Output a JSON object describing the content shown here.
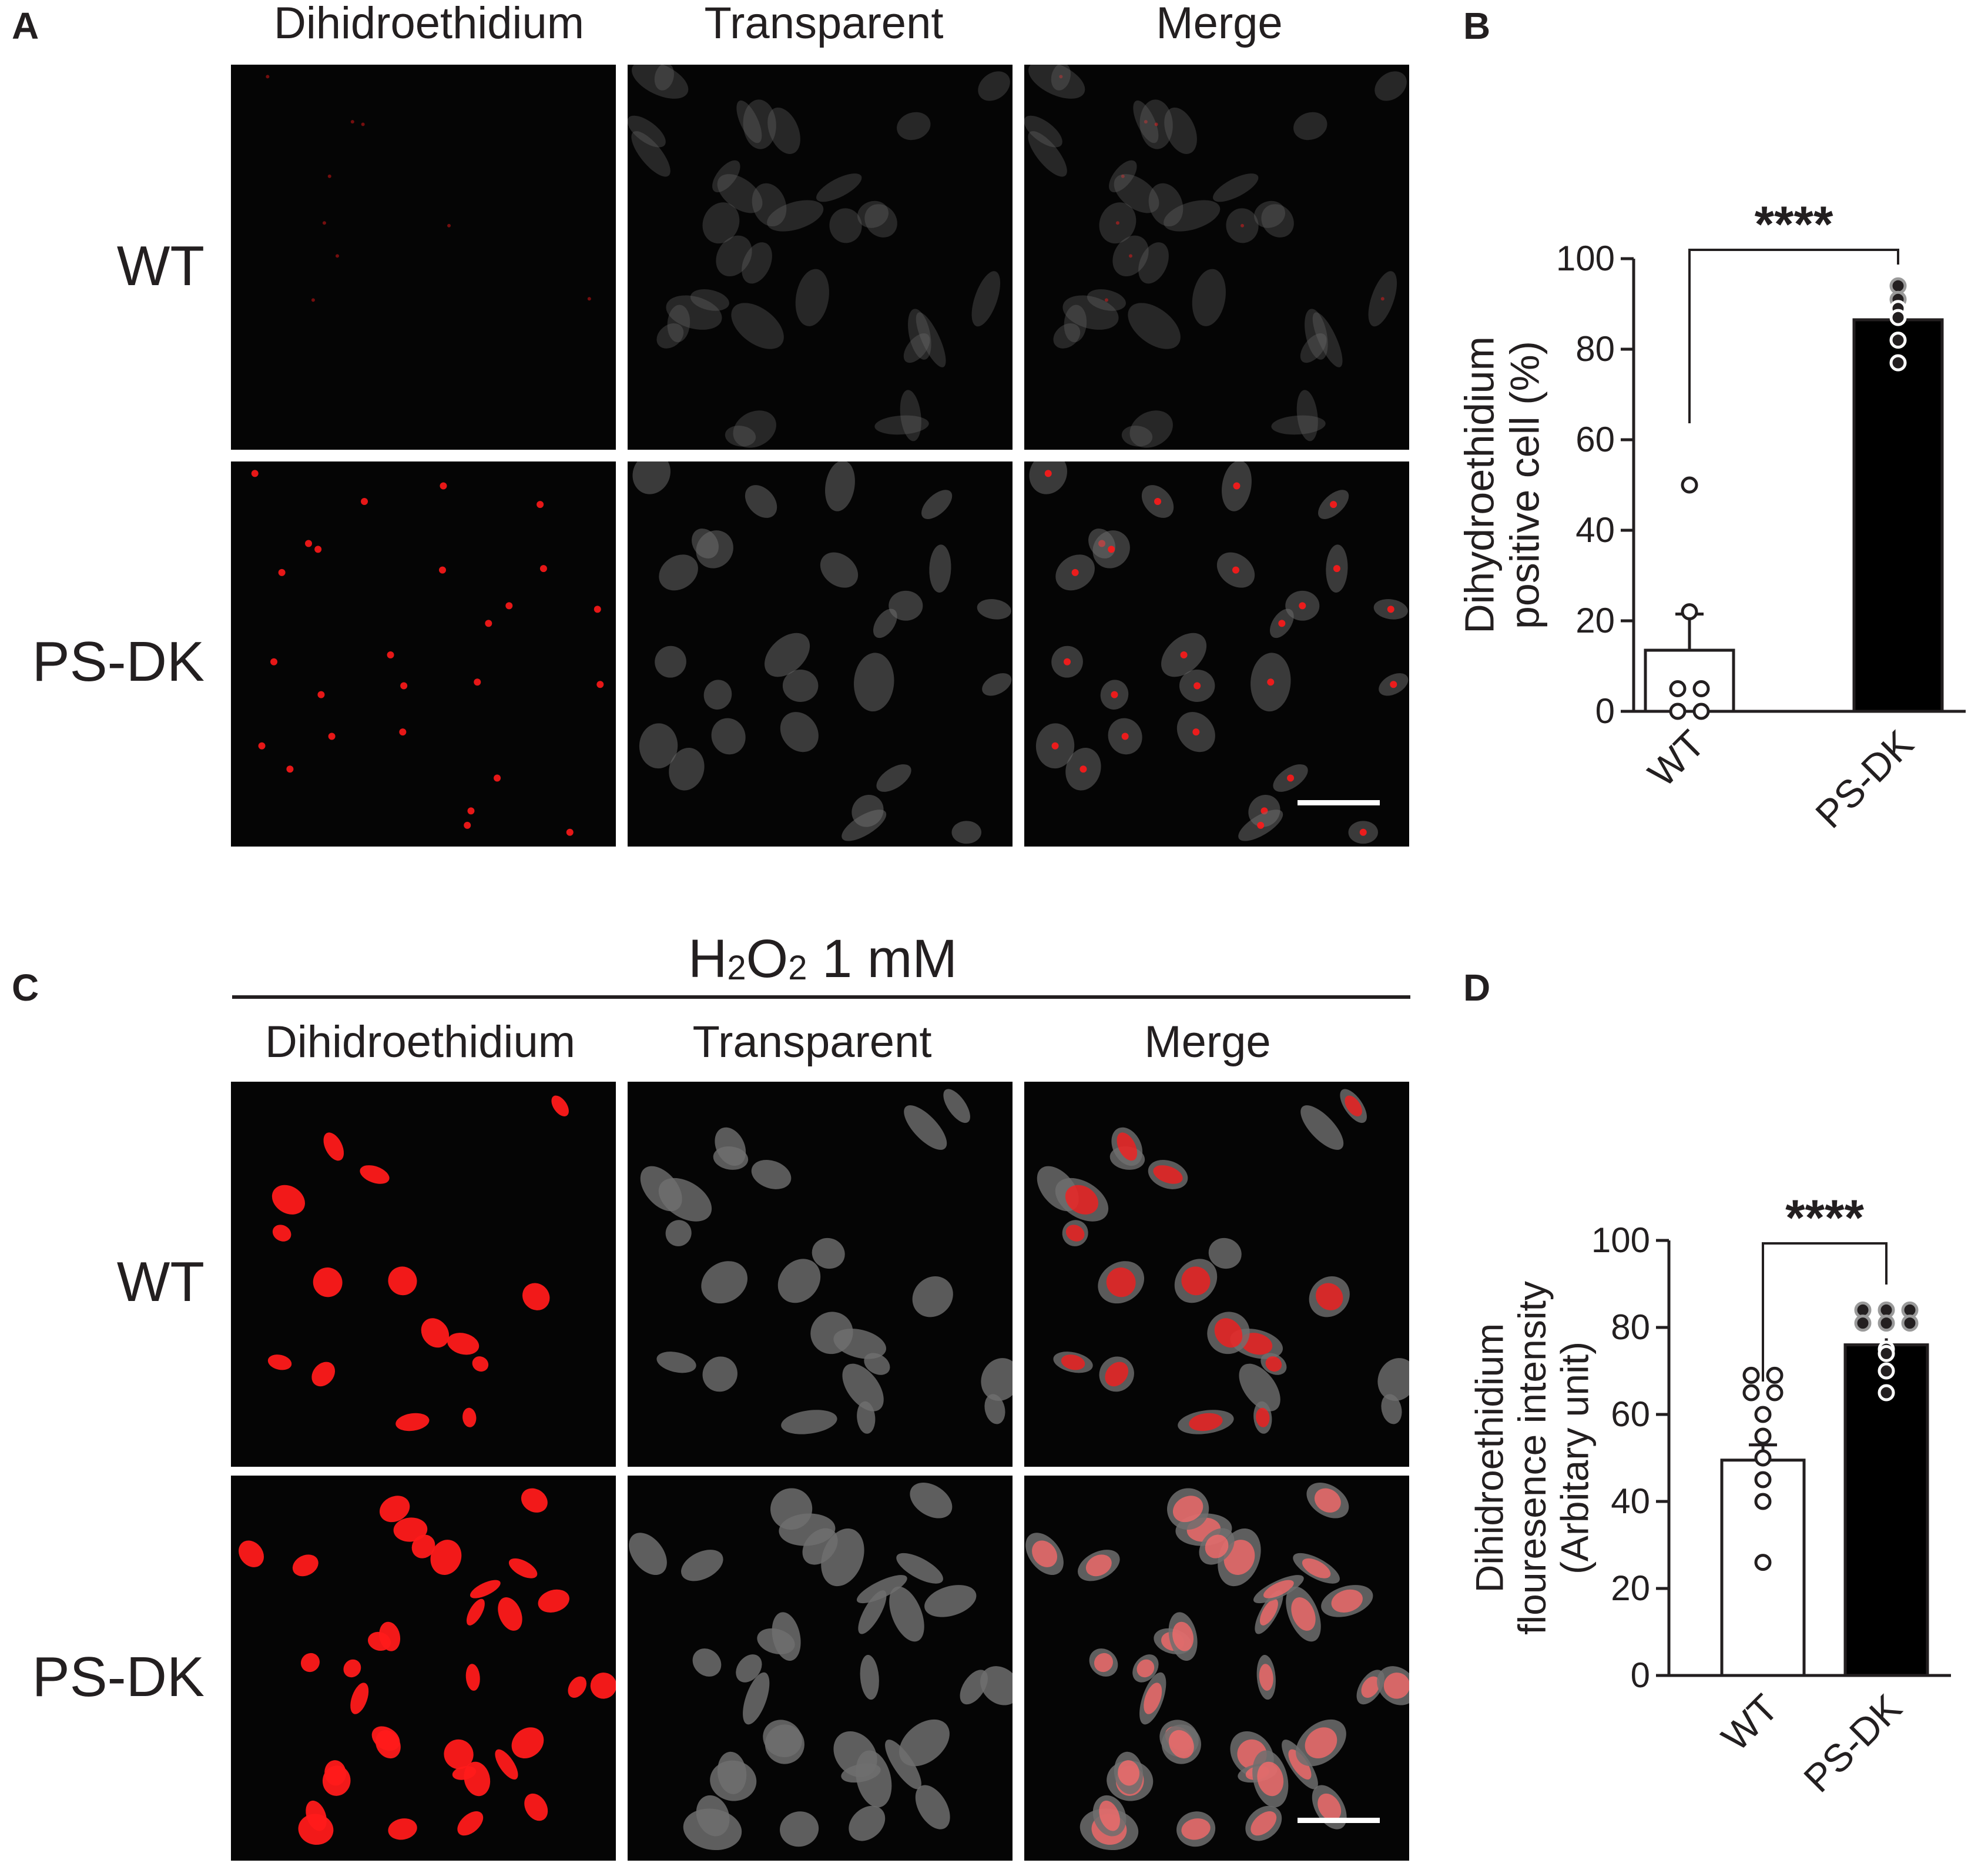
{
  "panels": {
    "A": {
      "letter": "A",
      "columns": [
        "Dihidroethidium",
        "Transparent",
        "Merge"
      ],
      "rows": [
        "WT",
        "PS-DK"
      ]
    },
    "B": {
      "letter": "B"
    },
    "C": {
      "letter": "C",
      "condition": "H2O2 1 mM",
      "condition_parts": {
        "h": "H",
        "sub1": "2",
        "o": "O",
        "sub2": "2",
        "rest": " 1 mM"
      },
      "columns": [
        "Dihidroethidium",
        "Transparent",
        "Merge"
      ],
      "rows": [
        "WT",
        "PS-DK"
      ]
    },
    "D": {
      "letter": "D"
    }
  },
  "chart_data": [
    {
      "panel": "B",
      "type": "bar",
      "categories": [
        "WT",
        "PS-DK"
      ],
      "values": [
        13.5,
        86.5
      ],
      "sem": [
        8,
        2.5
      ],
      "bar_colors": [
        "#ffffff",
        "#000000"
      ],
      "points": [
        [
          50,
          22,
          5,
          5,
          0,
          0
        ],
        [
          94,
          91,
          89,
          87,
          82,
          77
        ]
      ],
      "ylabel_lines": [
        "Dihydroethidium",
        "positive cell (%)"
      ],
      "ylim": [
        0,
        100
      ],
      "yticks": [
        0,
        20,
        40,
        60,
        80,
        100
      ],
      "significance": "****"
    },
    {
      "panel": "D",
      "type": "bar",
      "categories": [
        "WT",
        "PS-DK"
      ],
      "values": [
        49.5,
        76
      ],
      "sem": [
        3.5,
        1.5
      ],
      "bar_colors": [
        "#ffffff",
        "#000000"
      ],
      "points": [
        [
          69,
          69,
          65,
          65,
          60,
          55,
          50,
          45,
          40,
          26
        ],
        [
          84,
          84,
          84,
          81,
          81,
          81,
          75,
          74,
          70,
          65
        ]
      ],
      "ylabel_lines": [
        "Dihidroethidium",
        "flouresence intensity",
        "(Arbitary unit)"
      ],
      "ylim": [
        0,
        100
      ],
      "yticks": [
        0,
        20,
        40,
        60,
        80,
        100
      ],
      "significance": "****"
    }
  ],
  "colors": {
    "text": "#231f20",
    "micrograph_bg": "#050505",
    "dhe_red": "#ff1a1a",
    "merge_red": "#ff6b6b",
    "cell_gray": "#6f6f6f"
  }
}
